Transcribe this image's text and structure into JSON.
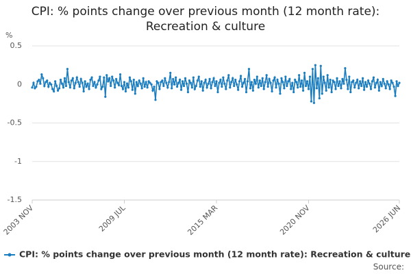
{
  "chart_data": {
    "type": "line",
    "title": "CPI: % points change over previous month (12 month rate): Recreation & culture",
    "y_unit": "%",
    "source_label": "Source:",
    "color": "#1a7dc0",
    "grid": true,
    "ylim": [
      -1.5,
      0.5
    ],
    "yticks": [
      0.5,
      0,
      -0.5,
      -1,
      -1.5
    ],
    "categories": [
      "2003 NOV",
      null,
      null,
      null,
      null,
      null,
      null,
      null,
      null,
      null,
      null,
      null,
      null,
      null,
      null,
      null,
      null,
      null,
      null,
      null,
      null,
      null,
      null,
      null,
      null,
      null,
      null,
      null,
      null,
      null,
      null,
      null,
      null,
      null,
      null,
      null,
      null,
      null,
      null,
      null,
      null,
      null,
      null,
      null,
      null,
      null,
      null,
      null,
      null,
      null,
      null,
      null,
      null,
      null,
      null,
      null,
      null,
      null,
      null,
      null,
      null,
      null,
      null,
      null,
      null,
      null,
      null,
      null,
      "2009 JUL",
      null,
      null,
      null,
      null,
      null,
      null,
      null,
      null,
      null,
      null,
      null,
      null,
      null,
      null,
      null,
      null,
      null,
      null,
      null,
      null,
      null,
      null,
      null,
      null,
      null,
      null,
      null,
      null,
      null,
      null,
      null,
      null,
      null,
      null,
      null,
      null,
      null,
      null,
      null,
      null,
      null,
      null,
      null,
      null,
      null,
      null,
      null,
      null,
      null,
      null,
      null,
      null,
      null,
      null,
      null,
      null,
      null,
      null,
      null,
      null,
      null,
      null,
      null,
      null,
      null,
      null,
      null,
      "2015 MAR",
      null,
      null,
      null,
      null,
      null,
      null,
      null,
      null,
      null,
      null,
      null,
      null,
      null,
      null,
      null,
      null,
      null,
      null,
      null,
      null,
      null,
      null,
      null,
      null,
      null,
      null,
      null,
      null,
      null,
      null,
      null,
      null,
      null,
      null,
      null,
      null,
      null,
      null,
      null,
      null,
      null,
      null,
      null,
      null,
      null,
      null,
      null,
      null,
      null,
      null,
      null,
      null,
      null,
      null,
      null,
      null,
      null,
      null,
      null,
      null,
      null,
      null,
      null,
      null,
      null,
      null,
      null,
      "2020 NOV",
      null,
      null,
      null,
      null,
      null,
      null,
      null,
      null,
      null,
      null,
      null,
      null,
      null,
      null,
      null,
      null,
      null,
      null,
      null,
      null,
      null,
      null,
      null,
      null,
      null,
      null,
      null,
      null,
      null,
      null,
      null,
      null,
      null,
      null,
      null,
      null,
      null,
      null,
      null,
      null,
      null,
      null,
      null,
      null,
      null,
      null,
      null,
      null,
      null,
      null,
      null,
      null,
      null,
      null,
      null,
      null,
      null,
      null,
      null,
      null,
      null,
      null,
      null,
      null,
      null,
      null,
      "2026 JUN"
    ],
    "series": [
      {
        "name": "CPI: % points change over previous month (12 month rate): Recreation & culture",
        "color": "#1a7dc0",
        "values": [
          -0.04,
          0.02,
          -0.05,
          -0.03,
          0.04,
          0.06,
          0.01,
          0.13,
          0.08,
          -0.02,
          0.03,
          0.05,
          -0.03,
          0.02,
          0.0,
          -0.06,
          -0.09,
          0.04,
          -0.02,
          -0.08,
          -0.05,
          0.06,
          0.01,
          -0.04,
          0.08,
          -0.02,
          0.2,
          0.03,
          -0.04,
          0.05,
          0.08,
          -0.05,
          0.02,
          0.09,
          0.03,
          -0.03,
          0.07,
          0.02,
          -0.09,
          0.04,
          -0.03,
          0.01,
          -0.06,
          0.06,
          0.09,
          -0.02,
          0.03,
          -0.04,
          0.0,
          0.05,
          0.1,
          -0.06,
          -0.03,
          0.09,
          -0.16,
          0.12,
          0.04,
          0.08,
          -0.02,
          0.1,
          0.05,
          -0.04,
          0.07,
          0.02,
          -0.01,
          0.13,
          -0.02,
          -0.06,
          0.03,
          -0.09,
          0.01,
          -0.04,
          0.09,
          0.04,
          -0.07,
          0.06,
          -0.12,
          0.03,
          -0.02,
          0.05,
          0.01,
          -0.05,
          0.08,
          -0.03,
          0.03,
          -0.04,
          0.04,
          0.02,
          0.0,
          -0.08,
          -0.03,
          -0.2,
          0.04,
          0.02,
          -0.06,
          0.03,
          0.05,
          -0.02,
          0.08,
          0.02,
          -0.04,
          0.03,
          0.15,
          -0.05,
          0.07,
          0.0,
          0.09,
          -0.03,
          0.02,
          0.06,
          -0.07,
          0.04,
          -0.02,
          0.08,
          0.01,
          -0.1,
          0.05,
          0.02,
          -0.04,
          0.09,
          -0.06,
          -0.02,
          0.05,
          0.1,
          -0.03,
          0.04,
          -0.08,
          0.02,
          0.06,
          -0.04,
          0.01,
          0.07,
          -0.05,
          0.03,
          0.08,
          -0.02,
          0.04,
          -0.1,
          0.02,
          0.06,
          -0.03,
          0.09,
          0.01,
          -0.06,
          0.05,
          0.12,
          -0.04,
          0.03,
          0.08,
          -0.02,
          0.06,
          0.0,
          -0.07,
          0.04,
          0.11,
          -0.03,
          0.02,
          0.07,
          -0.1,
          0.04,
          0.2,
          -0.05,
          0.03,
          -0.08,
          0.06,
          0.01,
          0.1,
          -0.04,
          0.05,
          -0.02,
          0.08,
          -0.06,
          0.03,
          0.12,
          -0.03,
          0.07,
          0.02,
          -0.09,
          0.05,
          0.09,
          -0.04,
          0.06,
          0.01,
          -0.12,
          0.08,
          0.03,
          -0.05,
          0.1,
          -0.02,
          0.04,
          0.07,
          -0.06,
          0.02,
          -0.1,
          0.06,
          0.03,
          -0.04,
          0.12,
          -0.03,
          0.05,
          -0.08,
          0.15,
          -0.02,
          0.04,
          -0.06,
          0.1,
          -0.22,
          0.2,
          -0.24,
          0.25,
          -0.05,
          0.08,
          -0.18,
          0.24,
          -0.12,
          0.1,
          0.02,
          -0.08,
          0.12,
          -0.04,
          0.06,
          -0.1,
          0.05,
          0.03,
          -0.06,
          0.08,
          -0.02,
          0.04,
          -0.05,
          0.07,
          0.01,
          0.21,
          0.06,
          -0.06,
          0.1,
          -0.1,
          0.03,
          0.05,
          -0.04,
          0.02,
          0.06,
          -0.05,
          0.04,
          -0.02,
          0.08,
          -0.07,
          0.03,
          -0.03,
          0.05,
          0.01,
          -0.06,
          0.04,
          0.09,
          -0.04,
          0.02,
          0.06,
          -0.08,
          0.03,
          -0.02,
          0.07,
          0.01,
          -0.05,
          0.04,
          0.0,
          -0.06,
          0.05,
          0.02,
          -0.03,
          -0.15,
          0.04,
          -0.02,
          0.02
        ]
      }
    ]
  }
}
